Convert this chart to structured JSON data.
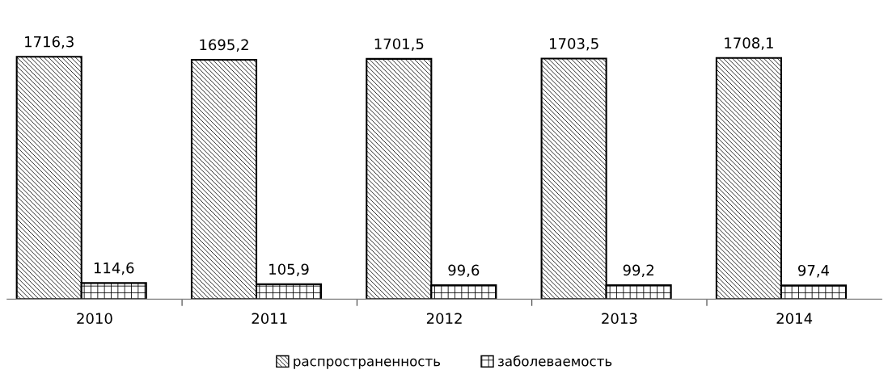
{
  "chart_data": {
    "type": "bar",
    "categories": [
      "2010",
      "2011",
      "2012",
      "2013",
      "2014"
    ],
    "series": [
      {
        "name": "распространенность",
        "color": "#000000",
        "values": [
          1716.3,
          1695.2,
          1701.5,
          1703.5,
          1708.1
        ],
        "value_labels": [
          "1716,3",
          "1695,2",
          "1701,5",
          "1703,5",
          "1708,1"
        ]
      },
      {
        "name": "заболеваемость",
        "color": "#000000",
        "values": [
          114.6,
          105.9,
          99.6,
          99.2,
          97.4
        ],
        "value_labels": [
          "114,6",
          "105,9",
          "99,6",
          "99,2",
          "97,4"
        ]
      }
    ],
    "legend": "bottom",
    "grid": false
  }
}
